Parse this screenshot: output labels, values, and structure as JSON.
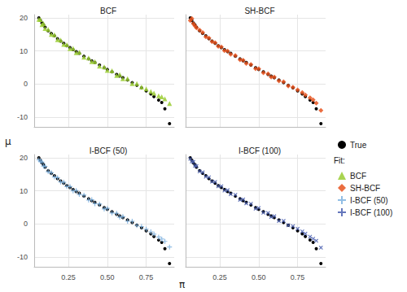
{
  "chart_data": {
    "type": "scatter",
    "x_label": "π",
    "y_label": "μ",
    "xlim": [
      0.03,
      0.93
    ],
    "ylim": [
      -13,
      21
    ],
    "xticks": [
      0.25,
      {
        "value": 0.5,
        "label": "0.50"
      },
      0.75
    ],
    "yticks": [
      -10,
      0,
      10,
      20
    ],
    "grid": true,
    "legend": "right",
    "legend_title": "Fit:",
    "x": [
      0.06,
      0.07,
      0.08,
      0.09,
      0.1,
      0.12,
      0.14,
      0.16,
      0.18,
      0.2,
      0.22,
      0.24,
      0.26,
      0.28,
      0.3,
      0.32,
      0.35,
      0.38,
      0.4,
      0.42,
      0.45,
      0.48,
      0.5,
      0.53,
      0.56,
      0.58,
      0.6,
      0.63,
      0.66,
      0.69,
      0.72,
      0.75,
      0.78,
      0.8,
      0.83,
      0.85,
      0.87,
      0.9
    ],
    "panels": [
      {
        "title": "BCF",
        "series": [
          {
            "name": "True",
            "color": "#000000",
            "marker": "circle",
            "values": [
              20.0,
              19.3,
              18.5,
              17.9,
              17.2,
              16.1,
              15.3,
              14.6,
              13.7,
              13.0,
              12.3,
              11.6,
              11.0,
              10.4,
              9.8,
              9.3,
              8.4,
              7.6,
              7.0,
              6.5,
              5.7,
              4.9,
              4.4,
              3.7,
              2.9,
              2.4,
              1.9,
              1.2,
              0.4,
              -0.4,
              -1.2,
              -2.1,
              -3.0,
              -3.8,
              -4.9,
              -5.6,
              -7.5,
              -12.0
            ]
          },
          {
            "name": "BCF",
            "color": "#9acd32",
            "marker": "triangle",
            "values": [
              19.6,
              19.5,
              18.0,
              18.3,
              16.8,
              16.5,
              15.0,
              14.9,
              13.4,
              13.3,
              12.0,
              11.9,
              10.7,
              10.8,
              9.5,
              9.6,
              8.1,
              7.9,
              6.8,
              6.8,
              5.4,
              5.2,
              4.1,
              4.0,
              2.6,
              2.8,
              1.6,
              1.6,
              0.1,
              0.1,
              -0.9,
              -1.5,
              -2.3,
              -2.8,
              -3.6,
              -3.9,
              -4.5,
              -5.9
            ]
          }
        ]
      },
      {
        "title": "SH-BCF",
        "series": [
          {
            "name": "True",
            "color": "#000000",
            "marker": "circle",
            "values": [
              20.0,
              19.3,
              18.5,
              17.9,
              17.2,
              16.1,
              15.3,
              14.6,
              13.7,
              13.0,
              12.3,
              11.6,
              11.0,
              10.4,
              9.8,
              9.3,
              8.4,
              7.6,
              7.0,
              6.5,
              5.7,
              4.9,
              4.4,
              3.7,
              2.9,
              2.4,
              1.9,
              1.2,
              0.4,
              -0.4,
              -1.2,
              -2.1,
              -3.0,
              -3.8,
              -4.9,
              -5.6,
              -7.5,
              -12.0
            ]
          },
          {
            "name": "SH-BCF",
            "color": "#e8541f",
            "marker": "diamond",
            "values": [
              19.2,
              19.8,
              18.2,
              17.6,
              17.0,
              16.3,
              15.6,
              14.3,
              13.9,
              12.8,
              12.5,
              11.4,
              11.2,
              10.1,
              10.0,
              9.0,
              8.6,
              7.3,
              7.2,
              6.2,
              5.9,
              4.6,
              4.6,
              3.4,
              3.1,
              2.1,
              2.1,
              0.9,
              0.7,
              -0.6,
              -1.0,
              -1.8,
              -2.6,
              -3.3,
              -4.2,
              -4.8,
              -5.8,
              -8.0
            ]
          }
        ]
      },
      {
        "title": "I-BCF (50)",
        "series": [
          {
            "name": "True",
            "color": "#000000",
            "marker": "circle",
            "values": [
              20.0,
              19.3,
              18.5,
              17.9,
              17.2,
              16.1,
              15.3,
              14.6,
              13.7,
              13.0,
              12.3,
              11.6,
              11.0,
              10.4,
              9.8,
              9.3,
              8.4,
              7.6,
              7.0,
              6.5,
              5.7,
              4.9,
              4.4,
              3.7,
              2.9,
              2.4,
              1.9,
              1.2,
              0.4,
              -0.4,
              -1.2,
              -2.1,
              -3.0,
              -3.8,
              -4.9,
              -5.6,
              -7.5,
              -12.0
            ]
          },
          {
            "name": "I-BCF (50)",
            "color": "#7fb3e0",
            "marker": "plus",
            "values": [
              19.4,
              19.0,
              18.7,
              17.5,
              17.4,
              15.8,
              15.5,
              14.2,
              14.0,
              12.7,
              12.6,
              11.3,
              11.3,
              10.0,
              10.1,
              8.9,
              8.7,
              7.2,
              7.3,
              6.1,
              6.0,
              4.5,
              4.7,
              3.3,
              3.2,
              2.0,
              2.2,
              0.8,
              0.8,
              -0.5,
              -0.8,
              -1.6,
              -2.4,
              -3.1,
              -4.0,
              -4.6,
              -5.3,
              -7.0
            ]
          }
        ]
      },
      {
        "title": "I-BCF (100)",
        "series": [
          {
            "name": "True",
            "color": "#000000",
            "marker": "circle",
            "values": [
              20.0,
              19.3,
              18.5,
              17.9,
              17.2,
              16.1,
              15.3,
              14.6,
              13.7,
              13.0,
              12.3,
              11.6,
              11.0,
              10.4,
              9.8,
              9.3,
              8.4,
              7.6,
              7.0,
              6.5,
              5.7,
              4.9,
              4.4,
              3.7,
              2.9,
              2.4,
              1.9,
              1.2,
              0.4,
              -0.4,
              -1.2,
              -2.1,
              -3.0,
              -3.8,
              -4.9,
              -5.6,
              -7.5,
              -12.0
            ]
          },
          {
            "name": "I-BCF (100)",
            "color": "#4a5fb0",
            "marker": "cross",
            "values": [
              19.7,
              18.9,
              18.8,
              17.6,
              17.5,
              15.9,
              15.6,
              14.3,
              14.1,
              12.8,
              12.7,
              11.4,
              11.4,
              10.1,
              10.2,
              9.0,
              8.8,
              7.3,
              7.4,
              6.2,
              6.1,
              4.6,
              4.8,
              3.4,
              3.3,
              2.1,
              2.3,
              0.9,
              0.9,
              -0.4,
              -0.7,
              -1.5,
              -2.3,
              -3.0,
              -3.9,
              -4.5,
              -5.1,
              -7.2
            ]
          }
        ]
      }
    ]
  }
}
